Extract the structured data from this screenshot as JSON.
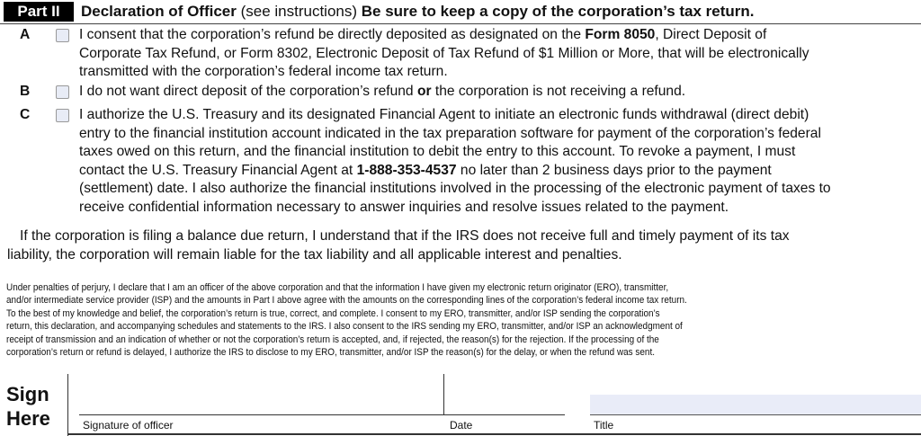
{
  "header": {
    "part": "Part II",
    "title_bold": "Declaration of Officer",
    "title_paren": " (see instructions) ",
    "title_note": "Be sure to keep a copy of the corporation’s tax return."
  },
  "items": [
    {
      "letter": "A",
      "lines": [
        "I consent that the corporation’s refund be directly deposited as designated on the ",
        "Corporate Tax Refund, or Form 8302, Electronic Deposit of Tax Refund of $1 Million or More, that will be electronically",
        "transmitted with the corporation’s federal income tax return."
      ],
      "bold": "Form 8050",
      "after_bold": ", Direct Deposit of"
    },
    {
      "letter": "B",
      "pre": "I do not want direct deposit of the corporation’s refund ",
      "bold": "or",
      "post": " the corporation is not receiving a refund."
    },
    {
      "letter": "C",
      "lines": [
        "I authorize the U.S. Treasury and its designated Financial Agent to initiate an electronic funds withdrawal (direct debit)",
        "entry to the financial institution account indicated in the tax preparation software for payment of the corporation’s federal",
        "taxes owed on this return, and the financial institution to debit the entry to this account. To revoke a payment, I must",
        "contact the U.S. Treasury Financial Agent at ",
        "(settlement) date. I also authorize the financial institutions involved in the processing of the electronic payment of taxes to",
        "receive confidential information necessary to answer inquiries and resolve issues related to the payment."
      ],
      "bold": "1-888-353-4537",
      "after_bold": " no later than 2 business days prior to the payment"
    }
  ],
  "balance_due": [
    "If the corporation is filing a balance due return, I understand that if the IRS does not receive full and timely payment of its tax",
    "liability, the corporation will remain liable for the tax liability and all applicable interest and penalties."
  ],
  "perjury": [
    "Under penalties of perjury, I declare that I am an officer of the above corporation and that the information I have given my electronic return originator (ERO), transmitter,",
    "and/or intermediate service provider (ISP) and the amounts in Part I above agree with the amounts on the corresponding lines of the corporation’s federal income tax return.",
    "To the best of my knowledge and belief, the corporation’s return is true, correct, and complete. I consent to my ERO, transmitter, and/or ISP sending the corporation’s",
    "return, this declaration, and accompanying schedules and statements to the IRS. I also consent to the IRS sending my ERO, transmitter, and/or ISP an acknowledgment of",
    "receipt of transmission and an indication of whether or not the corporation’s return is accepted, and, if rejected, the reason(s) for the rejection. If the processing of the",
    "corporation’s return or refund is delayed, I authorize the IRS to disclose to my ERO, transmitter, and/or ISP the reason(s) for the delay, or when the refund was sent."
  ],
  "sign": {
    "line1": "Sign",
    "line2": "Here",
    "signature_label": "Signature of officer",
    "date_label": "Date",
    "title_label": "Title",
    "title_value": ""
  }
}
